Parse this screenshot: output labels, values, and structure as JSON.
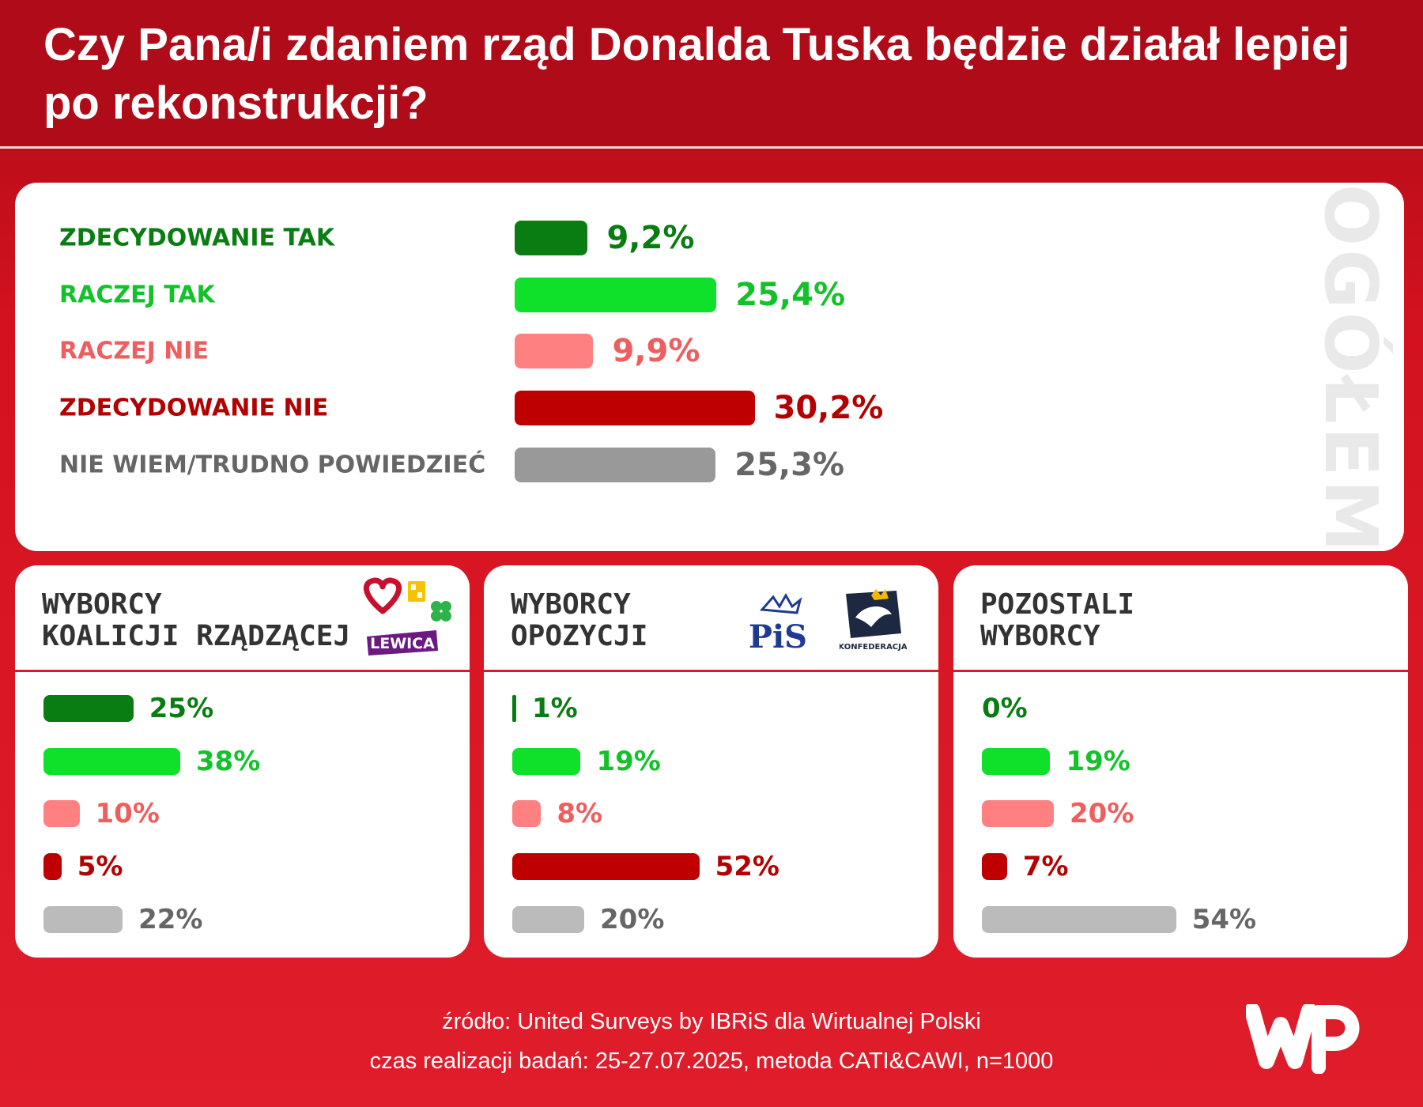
{
  "title": "Czy Pana/i zdaniem rząd Donalda Tuska będzie działał lepiej po rekonstrukcji?",
  "colors": {
    "zdecydowanie_tak": "#0a7d12",
    "raczej_tak": "#0fe02a",
    "raczej_nie": "#ff8080",
    "zdecydowanie_nie": "#bf0000",
    "nie_wiem_main": "#999999",
    "nie_wiem_sub": "#bbbbbb",
    "value_green_dark": "#0a7d12",
    "value_green_light": "#13c22a",
    "value_pink": "#ef5e5e",
    "value_red": "#b30000",
    "value_grey": "#666666"
  },
  "chart_data": [
    {
      "type": "bar",
      "orientation": "horizontal",
      "title": "",
      "side_label": "OGÓŁEM",
      "categories": [
        "ZDECYDOWANIE TAK",
        "RACZEJ TAK",
        "RACZEJ NIE",
        "ZDECYDOWANIE NIE",
        "NIE WIEM/TRUDNO POWIEDZIEĆ"
      ],
      "values": [
        9.2,
        25.4,
        9.9,
        30.2,
        25.3
      ],
      "value_labels": [
        "9,2%",
        "25,4%",
        "9,9%",
        "30,2%",
        "25,3%"
      ],
      "xlim": [
        0,
        100
      ]
    },
    {
      "type": "bar",
      "orientation": "horizontal",
      "title_lines": [
        "WYBORCY",
        "KOALICJI RZĄDZĄCEJ"
      ],
      "logos": [
        "heart-logo",
        "polska-2050-logo",
        "psl-clover-logo",
        "lewica-logo"
      ],
      "logo_text": "LEWICA",
      "categories": [
        "ZDECYDOWANIE TAK",
        "RACZEJ TAK",
        "RACZEJ NIE",
        "ZDECYDOWANIE NIE",
        "NIE WIEM/TRUDNO POWIEDZIEĆ"
      ],
      "values": [
        25,
        38,
        10,
        5,
        22
      ],
      "value_labels": [
        "25%",
        "38%",
        "10%",
        "5%",
        "22%"
      ],
      "xlim": [
        0,
        100
      ]
    },
    {
      "type": "bar",
      "orientation": "horizontal",
      "title_lines": [
        "WYBORCY",
        "OPOZYCJI"
      ],
      "logos": [
        "pis-logo",
        "konfederacja-logo"
      ],
      "logo_text_pis": "PiS",
      "logo_text_konf": "KONFEDERACJA",
      "categories": [
        "ZDECYDOWANIE TAK",
        "RACZEJ TAK",
        "RACZEJ NIE",
        "ZDECYDOWANIE NIE",
        "NIE WIEM/TRUDNO POWIEDZIEĆ"
      ],
      "values": [
        1,
        19,
        8,
        52,
        20
      ],
      "value_labels": [
        "1%",
        "19%",
        "8%",
        "52%",
        "20%"
      ],
      "xlim": [
        0,
        100
      ]
    },
    {
      "type": "bar",
      "orientation": "horizontal",
      "title_lines": [
        "POZOSTALI",
        "WYBORCY"
      ],
      "categories": [
        "ZDECYDOWANIE TAK",
        "RACZEJ TAK",
        "RACZEJ NIE",
        "ZDECYDOWANIE NIE",
        "NIE WIEM/TRUDNO POWIEDZIEĆ"
      ],
      "values": [
        0,
        19,
        20,
        7,
        54
      ],
      "value_labels": [
        "0%",
        "19%",
        "20%",
        "7%",
        "54%"
      ],
      "xlim": [
        0,
        100
      ]
    }
  ],
  "footer": {
    "source": "źródło: United Surveys by IBRiS dla Wirtualnej Polski",
    "details": "czas realizacji badań: 25-27.07.2025, metoda CATI&CAWI, n=1000"
  },
  "brand_logo": "wp-logo"
}
